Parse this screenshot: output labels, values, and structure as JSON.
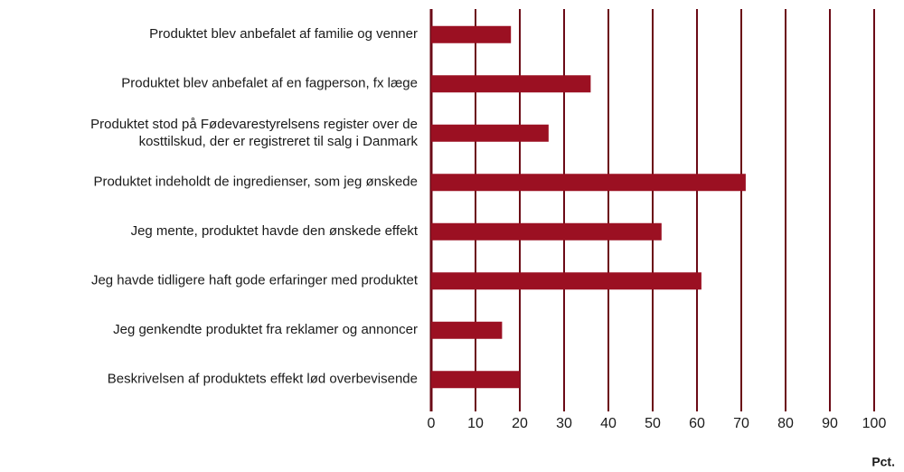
{
  "chart_data": {
    "type": "barh",
    "categories": [
      "Produktet blev anbefalet af familie og venner",
      "Produktet blev anbefalet af en fagperson, fx læge",
      "Produktet stod på Fødevarestyrelsens register over de\nkosttilskud, der er registreret til salg i Danmark",
      "Produktet indeholdt de ingredienser, som jeg ønskede",
      "Jeg mente, produktet havde den ønskede effekt",
      "Jeg havde tidligere haft gode erfaringer med produktet",
      "Jeg genkendte produktet fra reklamer og annoncer",
      "Beskrivelsen af produktets effekt lød overbevisende"
    ],
    "values": [
      18,
      36,
      26.5,
      71,
      52,
      61,
      16,
      20
    ],
    "color": "#9b1022",
    "xlabel": "Pct.",
    "xlim": [
      0,
      100
    ],
    "xticks": [
      0,
      10,
      20,
      30,
      40,
      50,
      60,
      70,
      80,
      90,
      100
    ],
    "grid": true
  }
}
